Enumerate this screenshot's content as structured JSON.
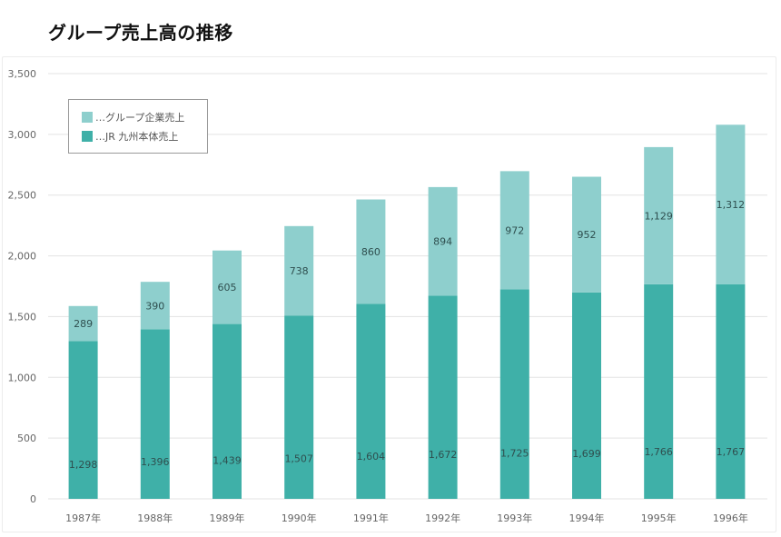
{
  "title": "グループ売上高の推移",
  "colors": {
    "group": "#8ecfcd",
    "jr": "#3fb0a8",
    "grid": "#e3e3e3"
  },
  "legend": {
    "items": [
      {
        "label": "…グループ企業売上",
        "color": "#8ecfcd"
      },
      {
        "label": "…JR 九州本体売上",
        "color": "#3fb0a8"
      }
    ]
  },
  "chart_data": {
    "type": "bar",
    "stacked": true,
    "title": "グループ売上高の推移",
    "xlabel": "",
    "ylabel": "",
    "ylim": [
      0,
      3500
    ],
    "yticks": [
      0,
      500,
      1000,
      1500,
      2000,
      2500,
      3000,
      3500
    ],
    "ytick_labels": [
      "0",
      "500",
      "1,000",
      "1,500",
      "2,000",
      "2,500",
      "3,000",
      "3,500"
    ],
    "grid": true,
    "legend_position": "top-left",
    "categories": [
      "1987年",
      "1988年",
      "1989年",
      "1990年",
      "1991年",
      "1992年",
      "1993年",
      "1994年",
      "1995年",
      "1996年"
    ],
    "series": [
      {
        "name": "JR 九州本体売上",
        "values": [
          1298,
          1396,
          1439,
          1507,
          1604,
          1672,
          1725,
          1699,
          1766,
          1767
        ],
        "labels": [
          "1,298",
          "1,396",
          "1,439",
          "1,507",
          "1,604",
          "1,672",
          "1,725",
          "1,699",
          "1,766",
          "1,767"
        ]
      },
      {
        "name": "グループ企業売上",
        "values": [
          289,
          390,
          605,
          738,
          860,
          894,
          972,
          952,
          1129,
          1312
        ],
        "labels": [
          "289",
          "390",
          "605",
          "738",
          "860",
          "894",
          "972",
          "952",
          "1,129",
          "1,312"
        ]
      }
    ]
  }
}
